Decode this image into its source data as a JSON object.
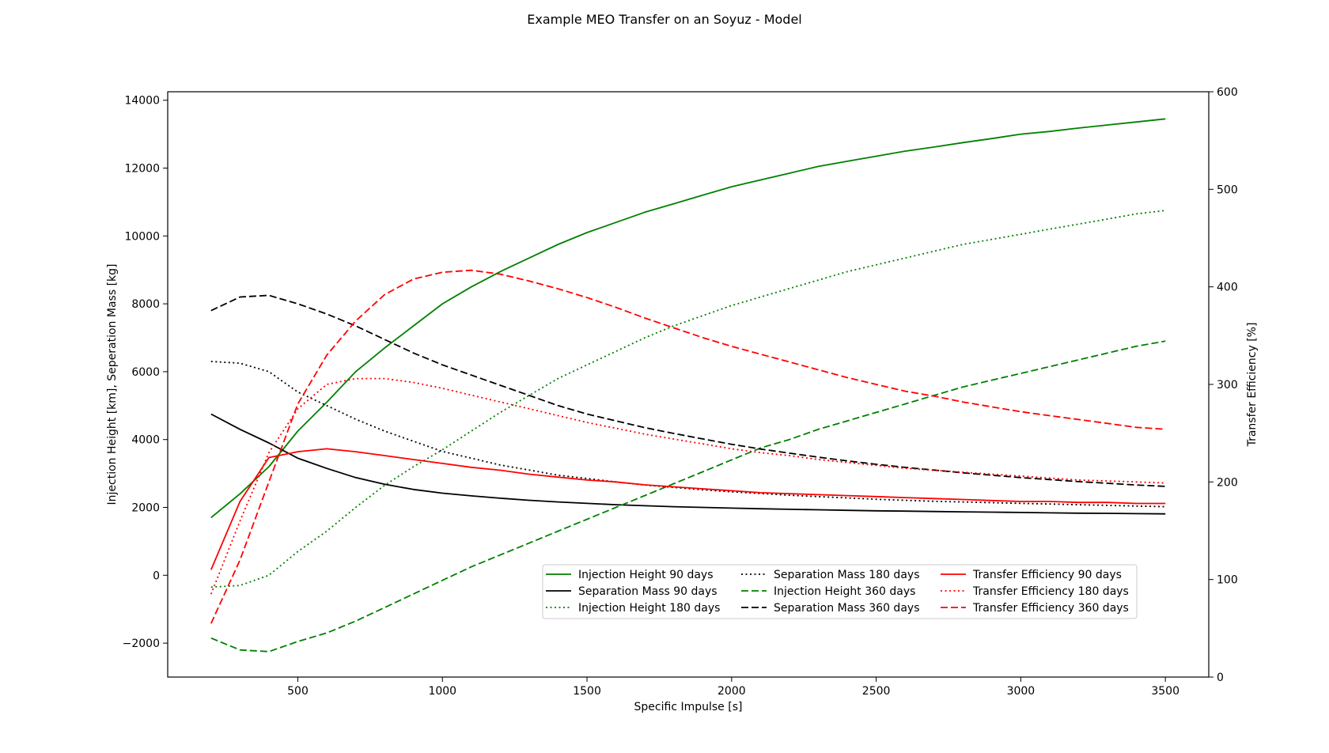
{
  "chart_data": {
    "type": "line",
    "title": "Example MEO Transfer on an Soyuz - Model",
    "xlabel": "Specific Impulse [s]",
    "ylabel": "Injection Height [km], Seperation Mass [kg]",
    "y2label": "Transfer Efficiency [%]",
    "xlim": [
      50,
      3650
    ],
    "ylim": [
      -3000,
      14250
    ],
    "y2lim": [
      0,
      600
    ],
    "xticks": [
      500,
      1000,
      1500,
      2000,
      2500,
      3000,
      3500
    ],
    "yticks": [
      -2000,
      0,
      2000,
      4000,
      6000,
      8000,
      10000,
      12000,
      14000
    ],
    "y2ticks": [
      0,
      100,
      200,
      300,
      400,
      500,
      600
    ],
    "x": [
      200,
      300,
      400,
      500,
      600,
      700,
      800,
      900,
      1000,
      1100,
      1200,
      1300,
      1400,
      1500,
      1600,
      1700,
      1800,
      1900,
      2000,
      2100,
      2200,
      2300,
      2400,
      2500,
      2600,
      2700,
      2800,
      2900,
      3000,
      3100,
      3200,
      3300,
      3400,
      3500
    ],
    "legend_position": "lower-right",
    "legend_columns": 3,
    "grid": false,
    "series": [
      {
        "name": "Injection Height 90 days",
        "axis": "left",
        "color": "#008000",
        "style": "solid",
        "values": [
          1700,
          2400,
          3200,
          4250,
          5100,
          6000,
          6700,
          7350,
          8000,
          8500,
          8950,
          9350,
          9750,
          10100,
          10400,
          10700,
          10950,
          11200,
          11450,
          11650,
          11850,
          12050,
          12200,
          12350,
          12500,
          12620,
          12750,
          12870,
          13000,
          13080,
          13180,
          13270,
          13360,
          13450
        ]
      },
      {
        "name": "Separation Mass 90 days",
        "axis": "left",
        "color": "#000000",
        "style": "solid",
        "values": [
          4750,
          4300,
          3900,
          3450,
          3150,
          2880,
          2680,
          2530,
          2420,
          2340,
          2270,
          2210,
          2160,
          2120,
          2080,
          2050,
          2020,
          2000,
          1980,
          1960,
          1945,
          1930,
          1915,
          1900,
          1890,
          1880,
          1870,
          1860,
          1850,
          1840,
          1830,
          1825,
          1815,
          1810
        ]
      },
      {
        "name": "Injection Height 180 days",
        "axis": "left",
        "color": "#008000",
        "style": "dotted",
        "values": [
          -350,
          -300,
          0,
          700,
          1300,
          2000,
          2650,
          3200,
          3700,
          4250,
          4800,
          5300,
          5800,
          6200,
          6600,
          7000,
          7350,
          7650,
          7950,
          8200,
          8450,
          8700,
          8950,
          9150,
          9350,
          9550,
          9750,
          9900,
          10050,
          10200,
          10350,
          10500,
          10650,
          10750
        ]
      },
      {
        "name": "Separation Mass 180 days",
        "axis": "left",
        "color": "#000000",
        "style": "dotted",
        "values": [
          6300,
          6250,
          6000,
          5400,
          5000,
          4600,
          4250,
          3950,
          3650,
          3450,
          3250,
          3100,
          2950,
          2850,
          2750,
          2660,
          2590,
          2520,
          2460,
          2410,
          2360,
          2320,
          2280,
          2240,
          2210,
          2180,
          2160,
          2140,
          2120,
          2100,
          2080,
          2060,
          2040,
          2020
        ]
      },
      {
        "name": "Injection Height 360 days",
        "axis": "left",
        "color": "#008000",
        "style": "dashed",
        "values": [
          -1850,
          -2200,
          -2250,
          -1950,
          -1700,
          -1350,
          -950,
          -550,
          -150,
          250,
          600,
          950,
          1300,
          1650,
          2000,
          2350,
          2700,
          3050,
          3400,
          3750,
          4000,
          4300,
          4550,
          4800,
          5050,
          5300,
          5550,
          5750,
          5950,
          6150,
          6350,
          6550,
          6750,
          6900
        ]
      },
      {
        "name": "Separation Mass 360 days",
        "axis": "left",
        "color": "#000000",
        "style": "dashed",
        "values": [
          7800,
          8200,
          8250,
          8000,
          7700,
          7350,
          6950,
          6550,
          6200,
          5900,
          5600,
          5300,
          5000,
          4750,
          4550,
          4350,
          4180,
          4020,
          3860,
          3720,
          3600,
          3480,
          3370,
          3270,
          3180,
          3100,
          3020,
          2950,
          2880,
          2820,
          2760,
          2710,
          2660,
          2620
        ]
      },
      {
        "name": "Transfer Efficiency 90 days",
        "axis": "right",
        "color": "#ff0000",
        "style": "solid",
        "values": [
          110,
          180,
          225,
          231,
          234,
          231,
          227,
          223,
          219,
          215,
          212,
          208,
          205,
          202,
          200,
          197,
          195,
          193,
          191,
          189,
          188,
          187,
          186,
          185,
          184,
          183,
          182,
          181,
          180,
          180,
          179,
          179,
          178,
          178
        ]
      },
      {
        "name": "Transfer Efficiency 180 days",
        "axis": "right",
        "color": "#ff0000",
        "style": "dotted",
        "values": [
          85,
          160,
          230,
          275,
          300,
          306,
          306,
          302,
          296,
          289,
          282,
          275,
          268,
          261,
          255,
          249,
          244,
          239,
          234,
          230,
          227,
          223,
          220,
          217,
          214,
          212,
          210,
          208,
          206,
          204,
          202,
          201,
          200,
          199
        ]
      },
      {
        "name": "Transfer Efficiency 360 days",
        "axis": "right",
        "color": "#ff0000",
        "style": "dashed",
        "values": [
          55,
          120,
          200,
          280,
          330,
          365,
          392,
          408,
          415,
          417,
          413,
          406,
          398,
          389,
          379,
          368,
          358,
          348,
          339,
          331,
          323,
          315,
          307,
          300,
          293,
          288,
          282,
          277,
          272,
          268,
          264,
          260,
          256,
          254
        ]
      }
    ]
  }
}
